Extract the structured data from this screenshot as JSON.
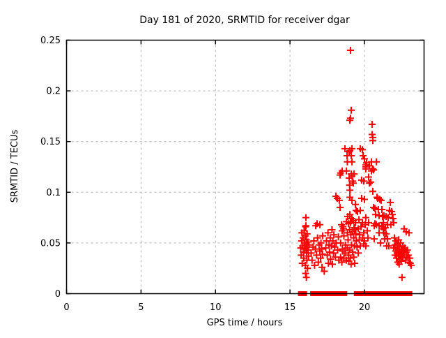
{
  "chart_data": {
    "type": "scatter",
    "title": "Day 181 of 2020, SRMTID for receiver dgar",
    "xlabel": "GPS time / hours",
    "ylabel": "SRMTID / TECUs",
    "xlim": [
      0,
      24
    ],
    "ylim": [
      0,
      0.25
    ],
    "xticks": [
      0,
      5,
      10,
      15,
      20
    ],
    "yticks": [
      0,
      0.05,
      0.1,
      0.15,
      0.2,
      0.25
    ],
    "ytick_labels": [
      "0",
      "0.05",
      "0.1",
      "0.15",
      "0.2",
      "0.25"
    ],
    "xtick_labels": [
      "0",
      "5",
      "10",
      "15",
      "20"
    ],
    "grid": "dashed",
    "grid_color": "#b0b0b0",
    "marker_color": "#ff0000",
    "border_color": "#000000",
    "legend": "none",
    "series": [
      {
        "name": "srmtid-values",
        "marker": "plus",
        "points": [
          [
            15.72,
            0.045
          ],
          [
            15.75,
            0.038
          ],
          [
            15.78,
            0.052
          ],
          [
            15.8,
            0.06
          ],
          [
            15.82,
            0.03
          ],
          [
            15.85,
            0.047
          ],
          [
            15.88,
            0.055
          ],
          [
            15.9,
            0.041
          ],
          [
            15.92,
            0.035
          ],
          [
            15.95,
            0.062
          ],
          [
            15.97,
            0.05
          ],
          [
            16.0,
            0.044
          ],
          [
            16.02,
            0.057
          ],
          [
            16.03,
            0.028
          ],
          [
            16.05,
            0.066
          ],
          [
            16.07,
            0.075
          ],
          [
            16.07,
            0.067
          ],
          [
            16.08,
            0.048
          ],
          [
            16.1,
            0.053
          ],
          [
            16.12,
            0.04
          ],
          [
            16.13,
            0.033
          ],
          [
            16.15,
            0.059
          ],
          [
            16.17,
            0.046
          ],
          [
            16.18,
            0.025
          ],
          [
            16.2,
            0.051
          ],
          [
            16.22,
            0.043
          ],
          [
            16.25,
            0.037
          ],
          [
            16.28,
            0.048
          ],
          [
            16.05,
            0.02
          ],
          [
            16.1,
            0.016
          ],
          [
            16.42,
            0.04
          ],
          [
            16.48,
            0.033
          ],
          [
            16.55,
            0.046
          ],
          [
            16.6,
            0.052
          ],
          [
            16.65,
            0.028
          ],
          [
            16.7,
            0.044
          ],
          [
            16.73,
            0.067
          ],
          [
            16.78,
            0.038
          ],
          [
            16.82,
            0.069
          ],
          [
            16.85,
            0.055
          ],
          [
            16.9,
            0.031
          ],
          [
            16.95,
            0.048
          ],
          [
            17.0,
            0.042
          ],
          [
            17.01,
            0.068
          ],
          [
            17.05,
            0.035
          ],
          [
            17.08,
            0.05
          ],
          [
            17.12,
            0.044
          ],
          [
            17.15,
            0.026
          ],
          [
            17.18,
            0.039
          ],
          [
            17.2,
            0.057
          ],
          [
            17.3,
            0.022
          ],
          [
            17.4,
            0.045
          ],
          [
            17.45,
            0.052
          ],
          [
            17.5,
            0.038
          ],
          [
            17.55,
            0.06
          ],
          [
            17.58,
            0.03
          ],
          [
            17.62,
            0.048
          ],
          [
            17.65,
            0.041
          ],
          [
            17.7,
            0.055
          ],
          [
            17.72,
            0.034
          ],
          [
            17.78,
            0.047
          ],
          [
            17.82,
            0.063
          ],
          [
            17.85,
            0.029
          ],
          [
            17.88,
            0.052
          ],
          [
            17.92,
            0.04
          ],
          [
            17.95,
            0.058
          ],
          [
            18.0,
            0.046
          ],
          [
            18.05,
            0.036
          ],
          [
            18.08,
            0.096
          ],
          [
            18.1,
            0.05
          ],
          [
            18.17,
            0.094
          ],
          [
            18.2,
            0.043
          ],
          [
            18.25,
            0.056
          ],
          [
            18.28,
            0.033
          ],
          [
            18.31,
            0.092
          ],
          [
            18.36,
            0.117
          ],
          [
            18.36,
            0.085
          ],
          [
            18.4,
            0.119
          ],
          [
            18.46,
            0.068
          ],
          [
            18.5,
            0.121
          ],
          [
            18.5,
            0.062
          ],
          [
            18.55,
            0.066
          ],
          [
            18.6,
            0.064
          ],
          [
            18.69,
            0.143
          ],
          [
            18.79,
            0.121
          ],
          [
            18.79,
            0.071
          ],
          [
            18.83,
            0.136
          ],
          [
            18.85,
            0.13
          ],
          [
            18.88,
            0.076
          ],
          [
            18.93,
            0.069
          ],
          [
            18.97,
            0.14
          ],
          [
            18.97,
            0.114
          ],
          [
            19.0,
            0.107
          ],
          [
            19.02,
            0.171
          ],
          [
            19.02,
            0.141
          ],
          [
            19.02,
            0.102
          ],
          [
            19.02,
            0.095
          ],
          [
            19.02,
            0.078
          ],
          [
            19.06,
            0.24
          ],
          [
            19.06,
            0.173
          ],
          [
            19.06,
            0.07
          ],
          [
            19.11,
            0.181
          ],
          [
            19.11,
            0.136
          ],
          [
            19.11,
            0.118
          ],
          [
            19.16,
            0.143
          ],
          [
            19.16,
            0.13
          ],
          [
            19.16,
            0.116
          ],
          [
            19.16,
            0.092
          ],
          [
            19.16,
            0.074
          ],
          [
            19.21,
            0.111
          ],
          [
            19.25,
            0.109
          ],
          [
            19.25,
            0.072
          ],
          [
            19.3,
            0.118
          ],
          [
            19.3,
            0.065
          ],
          [
            19.35,
            0.063
          ],
          [
            19.39,
            0.088
          ],
          [
            19.39,
            0.07
          ],
          [
            19.44,
            0.082
          ],
          [
            18.4,
            0.05
          ],
          [
            18.4,
            0.036
          ],
          [
            18.48,
            0.031
          ],
          [
            18.52,
            0.044
          ],
          [
            18.55,
            0.042
          ],
          [
            18.62,
            0.057
          ],
          [
            18.62,
            0.035
          ],
          [
            18.7,
            0.04
          ],
          [
            18.72,
            0.048
          ],
          [
            18.78,
            0.033
          ],
          [
            18.85,
            0.06
          ],
          [
            18.85,
            0.045
          ],
          [
            18.9,
            0.053
          ],
          [
            18.92,
            0.038
          ],
          [
            18.95,
            0.032
          ],
          [
            19.0,
            0.063
          ],
          [
            19.0,
            0.043
          ],
          [
            19.05,
            0.035
          ],
          [
            19.08,
            0.058
          ],
          [
            19.1,
            0.029
          ],
          [
            19.13,
            0.048
          ],
          [
            19.18,
            0.061
          ],
          [
            19.2,
            0.041
          ],
          [
            19.28,
            0.055
          ],
          [
            19.28,
            0.036
          ],
          [
            19.33,
            0.047
          ],
          [
            19.35,
            0.03
          ],
          [
            19.42,
            0.059
          ],
          [
            19.45,
            0.052
          ],
          [
            19.5,
            0.046
          ],
          [
            19.53,
            0.081
          ],
          [
            19.58,
            0.064
          ],
          [
            19.58,
            0.04
          ],
          [
            19.63,
            0.073
          ],
          [
            19.65,
            0.053
          ],
          [
            19.67,
            0.058
          ],
          [
            19.72,
            0.143
          ],
          [
            19.72,
            0.082
          ],
          [
            19.72,
            0.047
          ],
          [
            19.77,
            0.066
          ],
          [
            19.81,
            0.112
          ],
          [
            19.81,
            0.094
          ],
          [
            19.86,
            0.142
          ],
          [
            19.86,
            0.07
          ],
          [
            19.88,
            0.055
          ],
          [
            19.91,
            0.136
          ],
          [
            19.95,
            0.111
          ],
          [
            19.95,
            0.06
          ],
          [
            19.95,
            0.049
          ],
          [
            20.0,
            0.133
          ],
          [
            20.0,
            0.093
          ],
          [
            20.0,
            0.052
          ],
          [
            20.05,
            0.068
          ],
          [
            20.09,
            0.127
          ],
          [
            20.09,
            0.125
          ],
          [
            20.09,
            0.123
          ],
          [
            20.09,
            0.075
          ],
          [
            20.09,
            0.047
          ],
          [
            20.14,
            0.129
          ],
          [
            20.19,
            0.062
          ],
          [
            20.23,
            0.055
          ],
          [
            20.28,
            0.115
          ],
          [
            20.28,
            0.07
          ],
          [
            20.33,
            0.126
          ],
          [
            20.33,
            0.109
          ],
          [
            20.42,
            0.11
          ],
          [
            20.47,
            0.13
          ],
          [
            20.47,
            0.121
          ],
          [
            20.51,
            0.167
          ],
          [
            20.51,
            0.157
          ],
          [
            20.56,
            0.154
          ],
          [
            20.56,
            0.151
          ],
          [
            20.56,
            0.123
          ],
          [
            20.56,
            0.101
          ],
          [
            20.61,
            0.122
          ],
          [
            20.61,
            0.085
          ],
          [
            20.65,
            0.067
          ],
          [
            20.65,
            0.054
          ],
          [
            20.7,
            0.084
          ],
          [
            20.7,
            0.069
          ],
          [
            20.75,
            0.078
          ],
          [
            20.8,
            0.13
          ],
          [
            20.8,
            0.068
          ],
          [
            20.84,
            0.095
          ],
          [
            20.89,
            0.094
          ],
          [
            20.93,
            0.083
          ],
          [
            20.98,
            0.077
          ],
          [
            20.98,
            0.067
          ],
          [
            20.98,
            0.06
          ],
          [
            21.03,
            0.093
          ],
          [
            21.07,
            0.05
          ],
          [
            21.12,
            0.092
          ],
          [
            21.17,
            0.083
          ],
          [
            21.17,
            0.066
          ],
          [
            21.21,
            0.076
          ],
          [
            21.26,
            0.07
          ],
          [
            21.26,
            0.064
          ],
          [
            21.31,
            0.077
          ],
          [
            21.31,
            0.06
          ],
          [
            21.35,
            0.054
          ],
          [
            21.4,
            0.065
          ],
          [
            21.45,
            0.076
          ],
          [
            21.45,
            0.059
          ],
          [
            21.49,
            0.047
          ],
          [
            21.54,
            0.068
          ],
          [
            21.54,
            0.054
          ],
          [
            21.59,
            0.075
          ],
          [
            21.63,
            0.047
          ],
          [
            21.68,
            0.082
          ],
          [
            21.73,
            0.09
          ],
          [
            21.77,
            0.068
          ],
          [
            21.82,
            0.081
          ],
          [
            21.87,
            0.078
          ],
          [
            21.91,
            0.074
          ],
          [
            21.96,
            0.07
          ],
          [
            21.96,
            0.045
          ],
          [
            22.01,
            0.055
          ],
          [
            22.05,
            0.048
          ],
          [
            22.05,
            0.038
          ],
          [
            22.1,
            0.052
          ],
          [
            22.1,
            0.042
          ],
          [
            22.15,
            0.035
          ],
          [
            22.19,
            0.049
          ],
          [
            22.19,
            0.04
          ],
          [
            22.24,
            0.044
          ],
          [
            22.24,
            0.031
          ],
          [
            22.29,
            0.053
          ],
          [
            22.29,
            0.037
          ],
          [
            22.33,
            0.046
          ],
          [
            22.33,
            0.029
          ],
          [
            22.38,
            0.041
          ],
          [
            22.38,
            0.034
          ],
          [
            22.43,
            0.05
          ],
          [
            22.43,
            0.038
          ],
          [
            22.47,
            0.044
          ],
          [
            22.47,
            0.032
          ],
          [
            22.52,
            0.04
          ],
          [
            22.52,
            0.016
          ],
          [
            22.57,
            0.047
          ],
          [
            22.57,
            0.036
          ],
          [
            22.61,
            0.043
          ],
          [
            22.66,
            0.064
          ],
          [
            22.66,
            0.038
          ],
          [
            22.71,
            0.045
          ],
          [
            22.75,
            0.033
          ],
          [
            22.8,
            0.061
          ],
          [
            22.8,
            0.041
          ],
          [
            22.85,
            0.036
          ],
          [
            22.89,
            0.043
          ],
          [
            22.94,
            0.038
          ],
          [
            22.99,
            0.06
          ],
          [
            22.99,
            0.031
          ],
          [
            23.04,
            0.035
          ],
          [
            23.08,
            0.03
          ],
          [
            23.13,
            0.028
          ]
        ]
      },
      {
        "name": "zero-line-markers",
        "marker": "square",
        "points": [
          [
            15.7,
            0
          ],
          [
            15.98,
            0
          ],
          [
            16.52,
            0
          ],
          [
            16.8,
            0
          ],
          [
            17.08,
            0
          ],
          [
            17.36,
            0
          ],
          [
            17.64,
            0
          ],
          [
            17.92,
            0
          ],
          [
            18.2,
            0
          ],
          [
            18.48,
            0
          ],
          [
            18.68,
            0
          ],
          [
            19.45,
            0
          ],
          [
            19.73,
            0
          ],
          [
            20.01,
            0
          ],
          [
            20.29,
            0
          ],
          [
            20.57,
            0
          ],
          [
            20.85,
            0
          ],
          [
            21.13,
            0
          ],
          [
            21.3,
            0
          ],
          [
            21.45,
            0
          ],
          [
            21.6,
            0
          ],
          [
            21.75,
            0
          ],
          [
            21.9,
            0
          ],
          [
            22.18,
            0
          ],
          [
            22.46,
            0
          ],
          [
            22.62,
            0
          ],
          [
            22.74,
            0
          ],
          [
            22.9,
            0
          ],
          [
            23.05,
            0
          ]
        ]
      }
    ]
  }
}
